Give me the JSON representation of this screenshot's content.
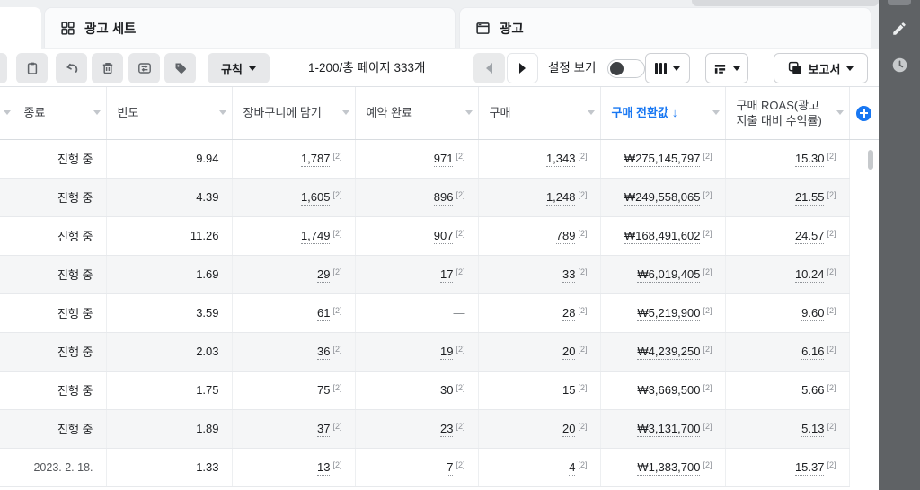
{
  "tabs": {
    "ad_sets_label": "광고 세트",
    "ads_label": "광고"
  },
  "toolbar": {
    "rules_label": "규칙",
    "pagination": "1-200/총 페이지 333개",
    "view_settings_label": "설정 보기",
    "view_settings_toggle_state": "off",
    "report_label": "보고서"
  },
  "table": {
    "sort_arrow": "↓",
    "footnote": "[2]",
    "dash": "—",
    "columns": [
      {
        "id": "end",
        "label": "종료"
      },
      {
        "id": "frequency",
        "label": "빈도"
      },
      {
        "id": "add_to_cart",
        "label": "장바구니에 담기"
      },
      {
        "id": "booking_completed",
        "label": "예약 완료"
      },
      {
        "id": "purchase",
        "label": "구매"
      },
      {
        "id": "conversion_value",
        "label": "구매 전환값",
        "sorted": "desc"
      },
      {
        "id": "roas",
        "label": "구매 ROAS(광고 지출 대비 수익률)"
      }
    ],
    "metric_columns": [
      "add_to_cart",
      "booking_completed",
      "purchase",
      "conversion_value",
      "roas"
    ],
    "rows": [
      {
        "end": "진행 중",
        "frequency": "9.94",
        "add_to_cart": "1,787",
        "booking_completed": "971",
        "purchase": "1,343",
        "conversion_value": "₩275,145,797",
        "roas": "15.30"
      },
      {
        "end": "진행 중",
        "frequency": "4.39",
        "add_to_cart": "1,605",
        "booking_completed": "896",
        "purchase": "1,248",
        "conversion_value": "₩249,558,065",
        "roas": "21.55"
      },
      {
        "end": "진행 중",
        "frequency": "11.26",
        "add_to_cart": "1,749",
        "booking_completed": "907",
        "purchase": "789",
        "conversion_value": "₩168,491,602",
        "roas": "24.57"
      },
      {
        "end": "진행 중",
        "frequency": "1.69",
        "add_to_cart": "29",
        "booking_completed": "17",
        "purchase": "33",
        "conversion_value": "₩6,019,405",
        "roas": "10.24"
      },
      {
        "end": "진행 중",
        "frequency": "3.59",
        "add_to_cart": "61",
        "booking_completed": "—",
        "purchase": "28",
        "conversion_value": "₩5,219,900",
        "roas": "9.60"
      },
      {
        "end": "진행 중",
        "frequency": "2.03",
        "add_to_cart": "36",
        "booking_completed": "19",
        "purchase": "20",
        "conversion_value": "₩4,239,250",
        "roas": "6.16"
      },
      {
        "end": "진행 중",
        "frequency": "1.75",
        "add_to_cart": "75",
        "booking_completed": "30",
        "purchase": "15",
        "conversion_value": "₩3,669,500",
        "roas": "5.66"
      },
      {
        "end": "진행 중",
        "frequency": "1.89",
        "add_to_cart": "37",
        "booking_completed": "23",
        "purchase": "20",
        "conversion_value": "₩3,131,700",
        "roas": "5.13"
      },
      {
        "end": "2023. 2. 18.",
        "end_is_date": true,
        "frequency": "1.33",
        "add_to_cart": "13",
        "booking_completed": "7",
        "purchase": "4",
        "conversion_value": "₩1,383,700",
        "roas": "15.37"
      }
    ]
  },
  "icons": {
    "ad_sets_tab": "grid-icon",
    "ads_tab": "window-icon",
    "toolbar_buttons": [
      "clipboard-icon",
      "undo-icon",
      "trash-icon",
      "swap-arrows-icon",
      "tag-icon"
    ],
    "columns_button": "columns-icon",
    "breakdown_button": "breakdown-icon",
    "report_button": "report-icon",
    "add_column": "plus-circle-icon",
    "sidebar": [
      "pencil-icon",
      "clock-icon"
    ]
  },
  "colors": {
    "accent_blue": "#1877f2",
    "sidebar_gray": "#5f6265",
    "row_stripe": "#f5f6f7",
    "toolbar_button_gray": "#e7e8ea"
  }
}
